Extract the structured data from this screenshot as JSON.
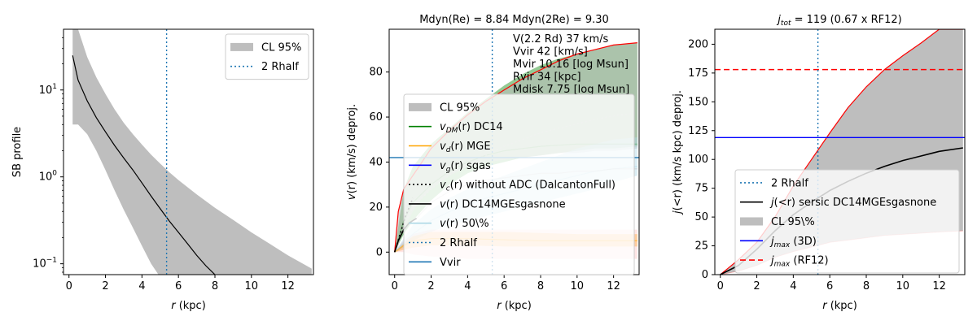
{
  "colors": {
    "blue": "#1f77b4",
    "green": "#008000",
    "orange": "#ffa500",
    "navy": "#0000ff",
    "red": "#ff0000",
    "grey": "#bebebe",
    "black": "#000000",
    "lightblue": "#add8e6"
  },
  "chart_data": [
    {
      "type": "line",
      "title": "",
      "xlabel": "r (kpc)",
      "ylabel": "SB profile",
      "yscale": "log",
      "xlim": [
        -0.3,
        13.4
      ],
      "ylim": [
        0.075,
        50
      ],
      "xticks": [
        0,
        2,
        4,
        6,
        8,
        10,
        12
      ],
      "yticks": [
        {
          "v": 0.1,
          "base": "10",
          "exp": "−1"
        },
        {
          "v": 1,
          "base": "10",
          "exp": "0"
        },
        {
          "v": 10,
          "base": "10",
          "exp": "1"
        }
      ],
      "legend": {
        "loc": "upper right",
        "entries": [
          {
            "label": "CL 95%",
            "style": "patch",
            "color": "grey"
          },
          {
            "label": "2 Rhalf",
            "style": "dotted",
            "color": "blue"
          }
        ]
      },
      "series": [
        {
          "kind": "band",
          "color": "grey",
          "x": [
            0.2,
            0.5,
            1,
            1.5,
            2,
            2.5,
            3,
            3.5,
            4,
            4.5,
            5,
            5.5,
            6,
            7,
            8,
            9,
            10,
            11,
            12,
            13.3
          ],
          "lower": [
            4,
            4,
            3.1,
            2.0,
            1.2,
            0.7,
            0.42,
            0.26,
            0.16,
            0.1,
            0.07,
            0.06,
            0.06,
            0.06,
            0.06,
            0.06,
            0.06,
            0.06,
            0.06,
            0.06
          ],
          "upper": [
            50,
            50,
            24,
            14,
            9,
            6.0,
            4.2,
            3.1,
            2.35,
            1.8,
            1.42,
            1.13,
            0.92,
            0.63,
            0.44,
            0.32,
            0.23,
            0.17,
            0.125,
            0.088
          ]
        },
        {
          "kind": "line",
          "color": "black",
          "width": 1.2,
          "x": [
            0.2,
            0.5,
            1,
            1.5,
            2,
            2.5,
            3,
            3.5,
            4,
            4.5,
            5,
            5.5,
            6,
            6.5,
            7,
            7.5,
            8,
            8.5
          ],
          "y": [
            25,
            13,
            7.5,
            4.8,
            3.3,
            2.3,
            1.65,
            1.2,
            0.85,
            0.6,
            0.43,
            0.31,
            0.23,
            0.17,
            0.125,
            0.095,
            0.075,
            0.058
          ]
        },
        {
          "kind": "vline",
          "color": "blue",
          "style": "dotted",
          "x": 5.35
        }
      ]
    },
    {
      "type": "line",
      "title": "Mdyn(Re) = 8.84  Mdyn(2Re) = 9.30",
      "xlabel": "r (kpc)",
      "ylabel": "v(r) (km/s) deproj.",
      "xlim": [
        -0.3,
        13.4
      ],
      "ylim": [
        -10,
        99
      ],
      "xticks": [
        0,
        2,
        4,
        6,
        8,
        10,
        12
      ],
      "yticks": [
        0,
        20,
        40,
        60,
        80
      ],
      "annotation": [
        "V(2.2 Rd) 37 km/s",
        "Vvir 42 [km/s]",
        "Mvir 10.16 [log Msun]",
        "Rvir 34 [kpc]",
        "Mdisk 7.75 [log Msun]"
      ],
      "legend": {
        "loc": "lower right",
        "entries": [
          {
            "label": "CL 95%",
            "style": "patch",
            "color": "grey"
          },
          {
            "label": "v_DM(r) DC14",
            "style": "solid",
            "color": "green",
            "math": {
              "pre": "v",
              "sub": "DM",
              "post": "(r) DC14"
            }
          },
          {
            "label": "v_d(r) MGE",
            "style": "solid",
            "color": "orange",
            "math": {
              "pre": "v",
              "sub": "d",
              "post": "(r) MGE"
            }
          },
          {
            "label": "v_g(r) sgas",
            "style": "solid",
            "color": "navy",
            "math": {
              "pre": "v",
              "sub": "g",
              "post": "(r) sgas"
            }
          },
          {
            "label": "v_c(r) without ADC (DalcantonFull)",
            "style": "dotted",
            "color": "black",
            "math": {
              "pre": "v",
              "sub": "c",
              "post": "(r) without ADC (DalcantonFull)"
            }
          },
          {
            "label": "v(r) DC14MGEsgasnone",
            "style": "solid",
            "color": "black",
            "math": {
              "pre": "v",
              "sub": "",
              "post": "(r) DC14MGEsgasnone"
            }
          },
          {
            "label": "v(r) 50\\%",
            "style": "solid",
            "color": "lightblue",
            "math": {
              "pre": "v",
              "sub": "",
              "post": "(r) 50\\%"
            }
          },
          {
            "label": "2 Rhalf",
            "style": "dotted",
            "color": "blue"
          },
          {
            "label": "Vvir",
            "style": "solid",
            "color": "blue"
          }
        ]
      },
      "series": [
        {
          "kind": "band",
          "color": "green",
          "opacity": 0.42,
          "x": [
            0,
            0.5,
            1,
            2,
            3,
            4,
            5,
            6,
            7,
            8,
            9,
            10,
            11,
            12,
            13.3
          ],
          "lower": [
            0,
            8,
            14,
            23,
            30,
            35,
            38,
            40,
            42,
            43,
            44,
            45,
            46,
            46,
            47
          ],
          "upper": [
            0,
            28,
            38,
            48,
            55,
            62,
            68,
            74,
            79,
            83,
            86,
            88,
            90,
            92,
            93
          ]
        },
        {
          "kind": "band",
          "color": "grey",
          "opacity": 0.55,
          "x": [
            0,
            0.2,
            0.5,
            1,
            1.5,
            2,
            3,
            4,
            5,
            6,
            7,
            8,
            9,
            10,
            11,
            12,
            13.3
          ],
          "lower": [
            0,
            3,
            10,
            18,
            24,
            28,
            34,
            38,
            40,
            41,
            42,
            43,
            44,
            44,
            45,
            45,
            46
          ],
          "upper": [
            0,
            18,
            28,
            34,
            40,
            46,
            54,
            61,
            67,
            72,
            77,
            81,
            85,
            88,
            90,
            92,
            93
          ]
        },
        {
          "kind": "band",
          "color": "lightblue",
          "opacity": 0.45,
          "x": [
            0,
            0.5,
            1,
            2,
            3,
            4,
            5,
            6,
            7,
            8,
            9,
            10,
            11,
            12,
            13.3
          ],
          "lower": [
            0,
            2,
            5,
            9,
            12,
            14,
            16,
            18,
            20,
            22,
            24,
            26,
            28,
            31,
            34
          ],
          "upper": [
            0,
            6,
            12,
            19,
            24,
            28,
            31,
            34,
            37,
            40,
            43,
            46,
            48,
            50,
            51
          ]
        },
        {
          "kind": "band",
          "color": "orange",
          "opacity": 0.3,
          "x": [
            0,
            0.5,
            1,
            2,
            4,
            6,
            8,
            10,
            13.3
          ],
          "lower": [
            0,
            1,
            2,
            3,
            3,
            2.5,
            2.5,
            2.5,
            2.5
          ],
          "upper": [
            0,
            4,
            7,
            9,
            9,
            9,
            8.5,
            8,
            8
          ]
        },
        {
          "kind": "band",
          "color": "red",
          "opacity": 0.1,
          "x": [
            0,
            0.5,
            1,
            2,
            4,
            6,
            8,
            10,
            12,
            13.3
          ],
          "lower": [
            0,
            0,
            -1,
            -2,
            -3,
            -3,
            -3,
            -3,
            -3,
            -3
          ],
          "upper": [
            0,
            5,
            8,
            10,
            10,
            10,
            10,
            10,
            10,
            10
          ]
        },
        {
          "kind": "line",
          "color": "red",
          "width": 1.2,
          "x": [
            0,
            0.2,
            0.5,
            1,
            1.5,
            2,
            3,
            4,
            5,
            6,
            7,
            8,
            9,
            10,
            11,
            12,
            13.3
          ],
          "y": [
            0,
            18,
            28,
            34,
            40,
            46,
            54,
            61,
            67,
            72,
            77,
            81,
            85,
            88,
            90,
            92,
            93
          ]
        },
        {
          "kind": "line",
          "color": "lightblue",
          "width": 1.2,
          "opacity": 0.6,
          "x": [
            0,
            0.5,
            1,
            2,
            3,
            4,
            5,
            6,
            7,
            8,
            9,
            10,
            11,
            12,
            13.3
          ],
          "y": [
            0,
            4,
            8,
            14,
            18,
            21,
            24,
            26,
            28,
            30,
            32,
            34,
            36,
            37,
            38
          ]
        },
        {
          "kind": "line",
          "color": "orange",
          "width": 1.2,
          "opacity": 0.6,
          "x": [
            0,
            0.5,
            1,
            2,
            4,
            6,
            8,
            10,
            13.3
          ],
          "y": [
            0,
            3,
            5,
            6,
            6,
            5.5,
            5,
            5,
            5
          ]
        },
        {
          "kind": "line",
          "color": "green",
          "width": 1.2,
          "opacity": 0.3,
          "x": [
            0,
            0.5,
            1,
            2,
            3,
            4,
            5,
            6,
            7,
            8,
            9,
            10,
            11,
            12,
            13.3
          ],
          "y": [
            0,
            14,
            22,
            30,
            36,
            40,
            43,
            45,
            46,
            47,
            47.5,
            48,
            48,
            48,
            48
          ]
        },
        {
          "kind": "line",
          "color": "grey",
          "width": 1.3,
          "style": "dotted",
          "opacity": 0.7,
          "x": [
            0,
            0.5,
            1,
            2,
            3,
            4,
            5,
            6,
            7,
            8,
            9,
            10,
            11,
            12,
            13.3
          ],
          "y": [
            0,
            12,
            20,
            28,
            34,
            39,
            43,
            47,
            50,
            53,
            55,
            57,
            59,
            60.5,
            62
          ]
        },
        {
          "kind": "line",
          "color": "black",
          "width": 1.6,
          "x": [
            0,
            0.2,
            0.5,
            0.8,
            1.2
          ],
          "y": [
            0,
            5,
            10,
            13,
            15
          ]
        },
        {
          "kind": "line",
          "color": "black",
          "width": 1.6,
          "style": "dotted",
          "x": [
            0,
            0.3,
            0.6,
            1.0
          ],
          "y": [
            0,
            8,
            16,
            24
          ]
        },
        {
          "kind": "line",
          "color": "grey",
          "width": 1.2,
          "opacity": 0.5,
          "x": [
            1.2,
            2,
            3,
            4,
            5,
            6,
            7,
            8,
            9,
            10,
            11,
            12,
            13.3
          ],
          "y": [
            15,
            22,
            27,
            30,
            32,
            33,
            34,
            35,
            35,
            36,
            36,
            37,
            37
          ]
        },
        {
          "kind": "hline",
          "color": "blue",
          "width": 1.4,
          "y": 42
        },
        {
          "kind": "vline",
          "color": "blue",
          "style": "dotted",
          "x": 5.35
        }
      ]
    },
    {
      "type": "line",
      "title": "j_tot = 119 (0.67 x RF12)",
      "title_math": {
        "pre": "j",
        "sub": "tot",
        "post": " = 119 (0.67 x RF12)"
      },
      "xlabel": "r (kpc)",
      "ylabel": "j(<r) (km/s kpc) deproj.",
      "xlim": [
        -0.3,
        13.4
      ],
      "ylim": [
        0,
        213
      ],
      "xticks": [
        0,
        2,
        4,
        6,
        8,
        10,
        12
      ],
      "yticks": [
        0,
        25,
        50,
        75,
        100,
        125,
        150,
        175,
        200
      ],
      "legend": {
        "loc": "lower right",
        "entries": [
          {
            "label": "2 Rhalf",
            "style": "dotted",
            "color": "blue"
          },
          {
            "label": "j(<r) sersic DC14MGEsgasnone",
            "style": "solid",
            "color": "black",
            "math": {
              "pre": "j",
              "sub": "",
              "post": "(<r) sersic DC14MGEsgasnone"
            }
          },
          {
            "label": "CL 95\\%",
            "style": "patch",
            "color": "grey"
          },
          {
            "label": "j_max (3D)",
            "style": "solid",
            "color": "navy",
            "math": {
              "pre": "j",
              "sub": "max",
              "post": " (3D)"
            }
          },
          {
            "label": "j_max (RF12)",
            "style": "dashed",
            "color": "red",
            "math": {
              "pre": "j",
              "sub": "max",
              "post": " (RF12)"
            }
          }
        ]
      },
      "series": [
        {
          "kind": "band",
          "color": "grey",
          "opacity": 1,
          "x": [
            0,
            1,
            2,
            3,
            4,
            5,
            6,
            7,
            8,
            9,
            10,
            11,
            12,
            13.3
          ],
          "lower": [
            0,
            3,
            8,
            15,
            20,
            24,
            28,
            30,
            32,
            34,
            35,
            36,
            37,
            38
          ],
          "upper": [
            0,
            13,
            28,
            50,
            77,
            100,
            123,
            145,
            163,
            178,
            190,
            201,
            213,
            213
          ]
        },
        {
          "kind": "line",
          "color": "red",
          "width": 1.2,
          "x": [
            0,
            1,
            2,
            3,
            4,
            5,
            6,
            7,
            8,
            9,
            10,
            11,
            12,
            13.3
          ],
          "y": [
            0,
            13,
            28,
            50,
            77,
            100,
            123,
            145,
            163,
            178,
            190,
            201,
            213,
            213
          ]
        },
        {
          "kind": "line",
          "color": "red",
          "width": 1.0,
          "opacity": 0.25,
          "x": [
            0,
            1,
            2,
            3,
            4,
            5,
            6,
            7,
            8,
            9,
            10,
            11,
            12,
            13.3
          ],
          "y": [
            0,
            3,
            8,
            15,
            20,
            24,
            28,
            30,
            32,
            34,
            35,
            36,
            37,
            38
          ]
        },
        {
          "kind": "line",
          "color": "black",
          "width": 1.6,
          "x": [
            0,
            1,
            2,
            3,
            4,
            5,
            6,
            7,
            8,
            9,
            10,
            11,
            12,
            13.3
          ],
          "y": [
            0,
            8,
            22,
            38,
            52,
            63,
            73,
            81,
            88,
            94,
            99,
            103,
            107,
            110
          ]
        },
        {
          "kind": "hline",
          "color": "navy",
          "width": 1.4,
          "y": 119
        },
        {
          "kind": "hline",
          "color": "red",
          "width": 1.6,
          "style": "dashed",
          "y": 178
        },
        {
          "kind": "vline",
          "color": "blue",
          "style": "dotted",
          "x": 5.35
        }
      ]
    }
  ]
}
